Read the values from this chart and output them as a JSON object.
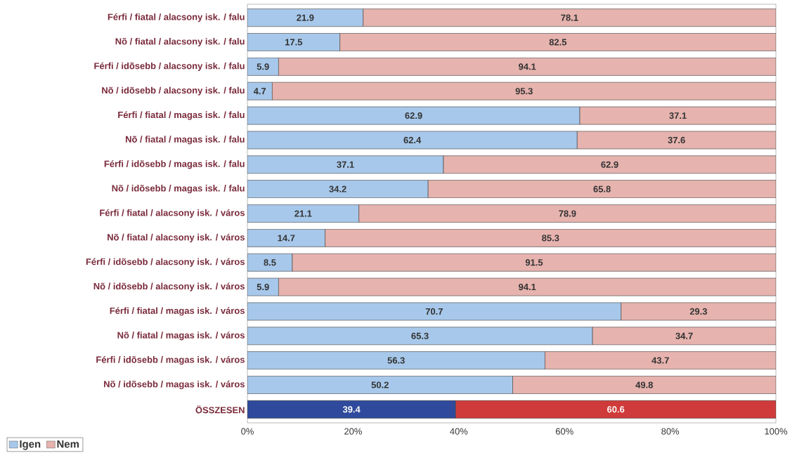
{
  "chart_data": {
    "type": "bar",
    "orientation": "horizontal",
    "stacked": true,
    "data_labels": true,
    "categories": [
      "Férfi / fiatal / alacsony isk. / falu",
      "Nõ / fiatal / alacsony isk. / falu",
      "Férfi / idõsebb / alacsony isk. / falu",
      "Nõ / idõsebb / alacsony isk. / falu",
      "Férfi / fiatal / magas isk. / falu",
      "Nõ / fiatal / magas isk. / falu",
      "Férfi / idõsebb / magas isk. / falu",
      "Nõ / idõsebb / magas isk. / falu",
      "Férfi / fiatal / alacsony isk. / város",
      "Nõ / fiatal / alacsony isk. / város",
      "Férfi / idõsebb / alacsony isk. / város",
      "Nõ / idõsebb / alacsony isk. / város",
      "Férfi / fiatal / magas isk. / város",
      "Nõ / fiatal / magas isk. / város",
      "Férfi / idõsebb / magas isk. / város",
      "Nõ / idõsebb / magas isk. / város",
      "ÖSSZESEN"
    ],
    "series": [
      {
        "name": "Igen",
        "color": "#a7c8ea",
        "colors": [
          "#a7c8ea",
          "#a7c8ea",
          "#a7c8ea",
          "#a7c8ea",
          "#a7c8ea",
          "#a7c8ea",
          "#a7c8ea",
          "#a7c8ea",
          "#a7c8ea",
          "#a7c8ea",
          "#a7c8ea",
          "#a7c8ea",
          "#a7c8ea",
          "#a7c8ea",
          "#a7c8ea",
          "#a7c8ea",
          "#2f4a9c"
        ],
        "values": [
          21.9,
          17.5,
          5.9,
          4.7,
          62.9,
          62.4,
          37.1,
          34.2,
          21.1,
          14.7,
          8.5,
          5.9,
          70.7,
          65.3,
          56.3,
          50.2,
          39.4
        ]
      },
      {
        "name": "Nem",
        "color": "#e6b3ae",
        "colors": [
          "#e6b3ae",
          "#e6b3ae",
          "#e6b3ae",
          "#e6b3ae",
          "#e6b3ae",
          "#e6b3ae",
          "#e6b3ae",
          "#e6b3ae",
          "#e6b3ae",
          "#e6b3ae",
          "#e6b3ae",
          "#e6b3ae",
          "#e6b3ae",
          "#e6b3ae",
          "#e6b3ae",
          "#e6b3ae",
          "#cf3b3a"
        ],
        "values": [
          78.1,
          82.5,
          94.1,
          95.3,
          37.1,
          37.6,
          62.9,
          65.8,
          78.9,
          85.3,
          91.5,
          94.1,
          29.3,
          34.7,
          43.7,
          49.8,
          60.6
        ]
      }
    ],
    "xlim": [
      0,
      100
    ],
    "xticks": [
      {
        "value": 0,
        "label": "0%"
      },
      {
        "value": 20,
        "label": "20%"
      },
      {
        "value": 40,
        "label": "40%"
      },
      {
        "value": 60,
        "label": "60%"
      },
      {
        "value": 80,
        "label": "80%"
      },
      {
        "value": 100,
        "label": "100%"
      }
    ],
    "legend": "bottom left"
  }
}
